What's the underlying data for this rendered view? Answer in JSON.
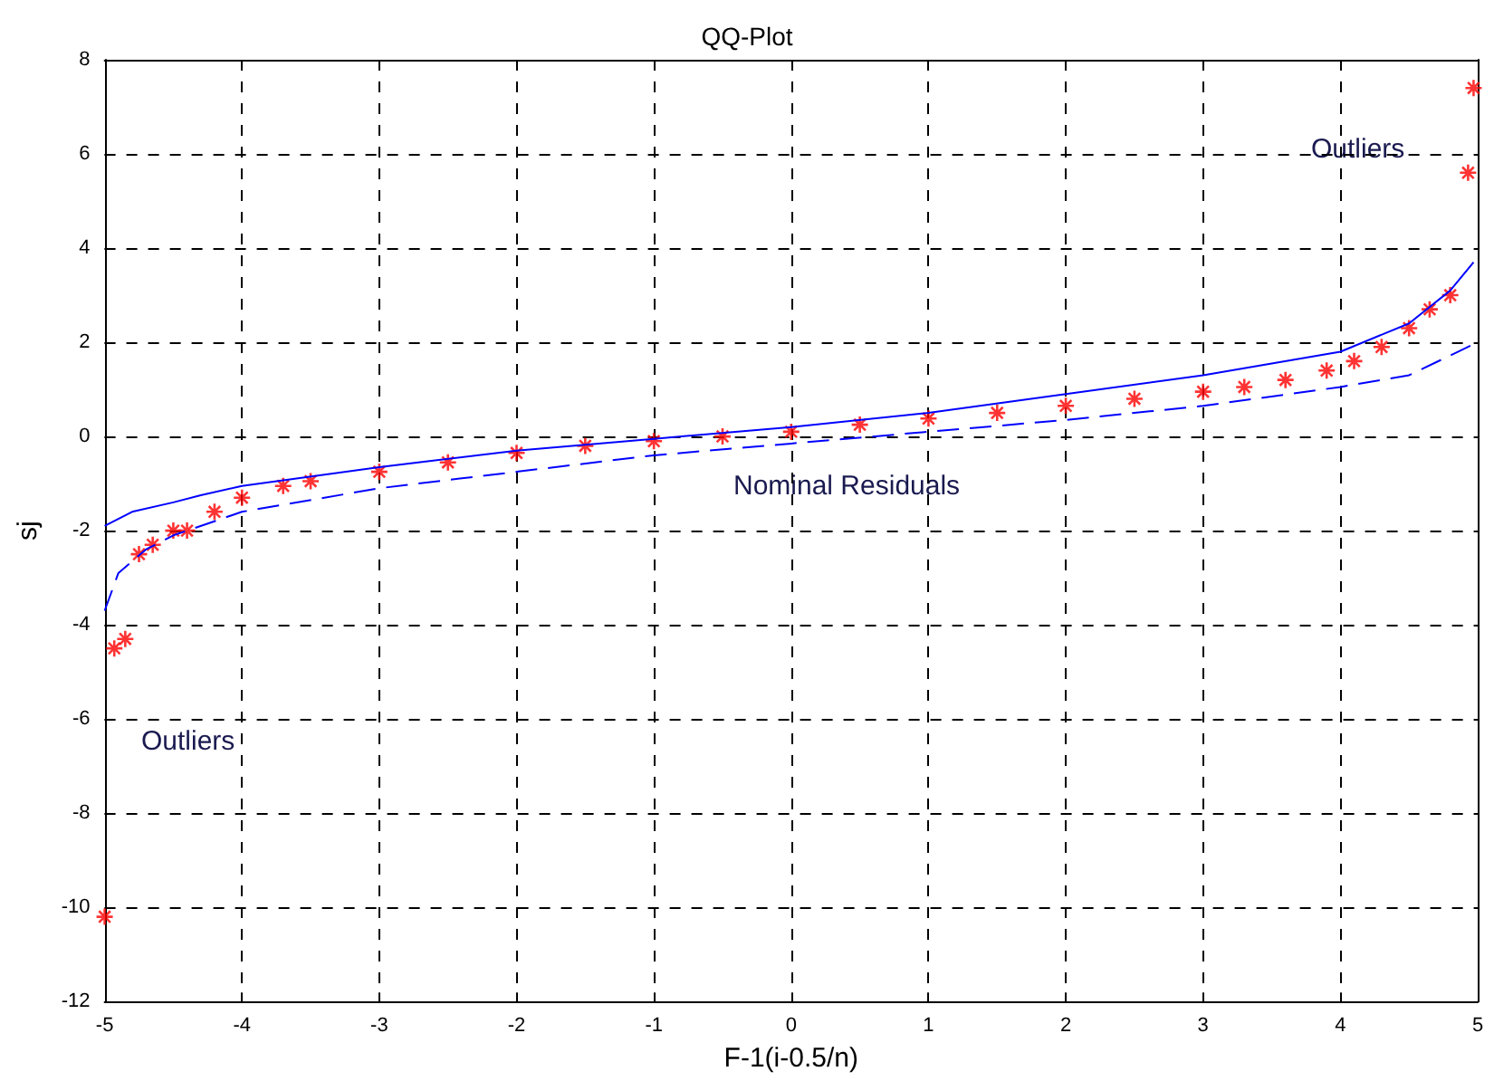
{
  "chart_data": {
    "type": "scatter",
    "title": "QQ-Plot",
    "xlabel": "F-1(i-0.5/n)",
    "ylabel": "sj",
    "xlim": [
      -5,
      5
    ],
    "xticks": [
      -5,
      -4,
      -3,
      -2,
      -1,
      0,
      1,
      2,
      3,
      4,
      5
    ],
    "ylim": [
      -12,
      8
    ],
    "yticks": [
      -12,
      -10,
      -8,
      -6,
      -4,
      -2,
      0,
      2,
      4,
      6,
      8
    ],
    "grid": true,
    "series": [
      {
        "color": "#ff0000",
        "marker": "cross",
        "x": [
          -5,
          -4.93,
          -4.85,
          -4.75,
          -4.65,
          -4.5,
          -4.4,
          -4.2,
          -4.0,
          -3.7,
          -3.5,
          -3.0,
          -2.5,
          -2.0,
          -1.5,
          -1.0,
          -0.5,
          0,
          0.5,
          1,
          1.5,
          2,
          2.5,
          3,
          3.3,
          3.6,
          3.9,
          4.1,
          4.3,
          4.5,
          4.65,
          4.8,
          4.93,
          4.97
        ],
        "values": [
          -10.2,
          -4.5,
          -4.3,
          -2.5,
          -2.3,
          -2.0,
          -2.0,
          -1.6,
          -1.3,
          -1.05,
          -0.95,
          -0.75,
          -0.55,
          -0.35,
          -0.2,
          -0.1,
          0,
          0.1,
          0.25,
          0.38,
          0.5,
          0.65,
          0.8,
          0.95,
          1.05,
          1.2,
          1.4,
          1.6,
          1.9,
          2.3,
          2.7,
          3.0,
          5.6,
          7.4
        ]
      },
      {
        "type": "line",
        "color": "#0000ff",
        "marker": "none",
        "line_style": "solid",
        "x": [
          -5,
          -4.8,
          -4.5,
          -4.3,
          -4,
          -3,
          -2,
          -1,
          0,
          1,
          2,
          3,
          4,
          4.5,
          4.8,
          4.97
        ],
        "values": [
          -1.9,
          -1.6,
          -1.4,
          -1.25,
          -1.05,
          -0.65,
          -0.3,
          -0.05,
          0.2,
          0.5,
          0.9,
          1.3,
          1.8,
          2.4,
          3.1,
          3.7
        ]
      },
      {
        "type": "line",
        "color": "#0000ff",
        "marker": "none",
        "line_style": "dashed",
        "x": [
          -5,
          -4.9,
          -4.7,
          -4.5,
          -4,
          -3,
          -2,
          -1,
          0,
          1,
          2,
          3,
          4,
          4.5,
          5
        ],
        "values": [
          -3.7,
          -2.9,
          -2.4,
          -2.1,
          -1.6,
          -1.1,
          -0.75,
          -0.4,
          -0.15,
          0.1,
          0.35,
          0.65,
          1.05,
          1.3,
          2.0
        ]
      }
    ],
    "annotations": [
      "Outliers",
      "Outliers",
      "Nominal Residuals"
    ]
  }
}
